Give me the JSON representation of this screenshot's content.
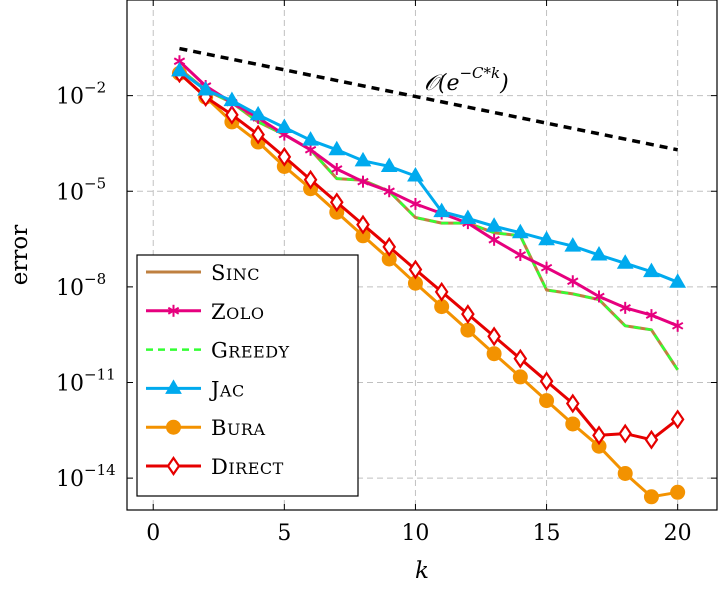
{
  "chart_data": {
    "type": "line",
    "xlabel": "k",
    "ylabel": "error",
    "y_scale": "log",
    "xlim": [
      -1,
      21.5
    ],
    "ylim": [
      1e-15,
      10
    ],
    "grid": true,
    "legend_position": "bottom-left",
    "x_ticks": [
      0,
      5,
      10,
      15,
      20
    ],
    "y_ticks": [
      {
        "value": 0.01,
        "base": "10",
        "exp": "−2"
      },
      {
        "value": 1e-05,
        "base": "10",
        "exp": "−5"
      },
      {
        "value": 1e-08,
        "base": "10",
        "exp": "−8"
      },
      {
        "value": 1e-11,
        "base": "10",
        "exp": "−11"
      },
      {
        "value": 1e-14,
        "base": "10",
        "exp": "−14"
      }
    ],
    "annotation": {
      "text": "𝒪(e",
      "sup": "−C*k",
      "close": ")"
    },
    "reference_line": {
      "x": [
        1,
        20
      ],
      "y": [
        0.3,
        0.0002
      ],
      "color": "#000000"
    },
    "series": [
      {
        "name": "Sinc",
        "color": "#bf8040",
        "marker": "none",
        "dashed": false,
        "x": [
          1,
          2,
          3,
          4,
          5,
          6,
          7,
          8,
          9,
          10,
          11,
          12,
          13,
          14,
          15,
          16,
          17,
          18,
          19,
          20
        ],
        "y": [
          0.07,
          0.015,
          0.006,
          0.0015,
          0.0006,
          0.0002,
          2.5e-05,
          2.2e-05,
          1e-05,
          1.5e-06,
          1e-06,
          1e-06,
          5e-07,
          4e-07,
          8e-09,
          6e-09,
          4e-09,
          6e-10,
          4.5e-10,
          2.5e-11
        ]
      },
      {
        "name": "Zolo",
        "color": "#e6007e",
        "marker": "star",
        "dashed": false,
        "x": [
          1,
          2,
          3,
          4,
          5,
          6,
          7,
          8,
          9,
          10,
          11,
          12,
          13,
          14,
          15,
          16,
          17,
          18,
          19,
          20
        ],
        "y": [
          0.12,
          0.02,
          0.006,
          0.002,
          0.0006,
          0.0002,
          5e-05,
          2e-05,
          1e-05,
          4e-06,
          2e-06,
          1e-06,
          3e-07,
          1e-07,
          4e-08,
          1.5e-08,
          5e-09,
          2.2e-09,
          1.3e-09,
          6e-10
        ]
      },
      {
        "name": "Greedy",
        "color": "#33ff33",
        "marker": "none",
        "dashed": true,
        "x": [
          1,
          2,
          3,
          4,
          5,
          6,
          7,
          8,
          9,
          10,
          11,
          12,
          13,
          14,
          15,
          16,
          17,
          18,
          19,
          20
        ],
        "y": [
          0.07,
          0.015,
          0.006,
          0.0015,
          0.0006,
          0.0002,
          2.5e-05,
          2.2e-05,
          1e-05,
          1.5e-06,
          1e-06,
          1e-06,
          5e-07,
          4e-07,
          8e-09,
          6e-09,
          4e-09,
          6e-10,
          4.5e-10,
          2.5e-11
        ]
      },
      {
        "name": "Jac",
        "color": "#00aaee",
        "marker": "triangle",
        "dashed": false,
        "x": [
          1,
          2,
          3,
          4,
          5,
          6,
          7,
          8,
          9,
          10,
          11,
          12,
          13,
          14,
          15,
          16,
          17,
          18,
          19,
          20
        ],
        "y": [
          0.06,
          0.015,
          0.007,
          0.0025,
          0.001,
          0.0004,
          0.0002,
          9e-05,
          6e-05,
          3e-05,
          2.3e-06,
          1.4e-06,
          8e-07,
          5e-07,
          3e-07,
          1.9e-07,
          1e-07,
          5.5e-08,
          3e-08,
          1.4e-08
        ]
      },
      {
        "name": "Bura",
        "color": "#f39200",
        "marker": "circle",
        "dashed": false,
        "x": [
          1,
          2,
          3,
          4,
          5,
          6,
          7,
          8,
          9,
          10,
          11,
          12,
          13,
          14,
          15,
          16,
          17,
          18,
          19,
          20
        ],
        "y": [
          0.05,
          0.009,
          0.0015,
          0.00035,
          6e-05,
          1.2e-05,
          2.2e-06,
          4e-07,
          7.5e-08,
          1.3e-08,
          2.4e-09,
          4.4e-10,
          8e-11,
          1.5e-11,
          2.7e-12,
          5e-13,
          1e-13,
          1.4e-14,
          2.6e-15,
          3.6e-15
        ]
      },
      {
        "name": "Direct",
        "color": "#e60000",
        "marker": "diamond",
        "dashed": false,
        "x": [
          1,
          2,
          3,
          4,
          5,
          6,
          7,
          8,
          9,
          10,
          11,
          12,
          13,
          14,
          15,
          16,
          17,
          18,
          19,
          20
        ],
        "y": [
          0.05,
          0.009,
          0.0025,
          0.0006,
          0.00012,
          2.3e-05,
          4.5e-06,
          9e-07,
          1.8e-07,
          3.5e-08,
          7e-09,
          1.4e-09,
          2.8e-10,
          5.6e-11,
          1.1e-11,
          2.2e-12,
          2.2e-13,
          2.5e-13,
          1.6e-13,
          7e-13
        ]
      }
    ]
  }
}
